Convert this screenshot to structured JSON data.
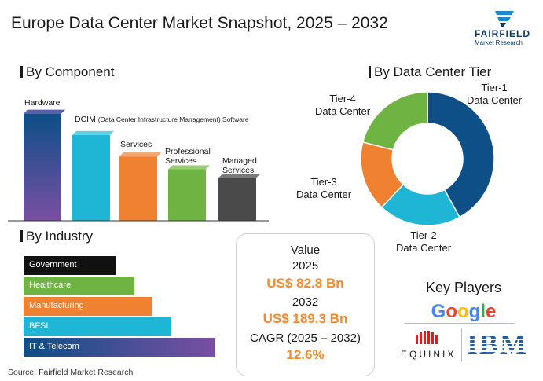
{
  "title": "Europe Data Center Market Snapshot, 2025 – 2032",
  "logo": {
    "brand": "FAIRFIELD",
    "sub": "Market Research"
  },
  "colors": {
    "navy": "#0d4f86",
    "cyan": "#1fb6d6",
    "orange": "#f08131",
    "green": "#6fb443",
    "gray": "#4a4a4a",
    "black": "#111111",
    "accent": "#f28a2e"
  },
  "chart_data": [
    {
      "type": "bar",
      "title": "By Component",
      "categories": [
        "Hardware",
        "DCIM (Data Center Infrastructure Management) Software",
        "Services",
        "Professional Services",
        "Managed Services"
      ],
      "category_lines": [
        [
          "Hardware"
        ],
        [
          "DCIM",
          "(Data Center Infrastructure Management) Software"
        ],
        [
          "Services"
        ],
        [
          "Professional",
          "Services"
        ],
        [
          "Managed",
          "Services"
        ]
      ],
      "values": [
        5,
        4,
        3,
        2.4,
        2
      ],
      "ylim": [
        0,
        5.5
      ],
      "xlabel": "",
      "ylabel": ""
    },
    {
      "type": "pie",
      "title": "By Data Center Tier",
      "labels": [
        "Tier-1 Data Center",
        "Tier-2 Data Center",
        "Tier-3 Data Center",
        "Tier-4 Data Center"
      ],
      "label_lines": [
        [
          "Tier-1",
          "Data Center"
        ],
        [
          "Tier-2",
          "Data Center"
        ],
        [
          "Tier-3",
          "Data Center"
        ],
        [
          "Tier-4",
          "Data Center"
        ]
      ],
      "values": [
        42,
        20,
        17,
        21
      ],
      "donut": true
    },
    {
      "type": "bar",
      "orientation": "horizontal",
      "title": "By Industry",
      "categories": [
        "Government",
        "Healthcare",
        "Manufacturing",
        "BFSI",
        "IT & Telecom"
      ],
      "values": [
        2.5,
        3,
        3.5,
        4,
        5.2
      ],
      "xlim": [
        0,
        5.5
      ]
    }
  ],
  "value_box": {
    "heading": "Value",
    "year1": "2025",
    "value1": "US$ 82.8 Bn",
    "year2": "2032",
    "value2": "US$ 189.3 Bn",
    "cagr_label": "CAGR (2025 – 2032)",
    "cagr_value": "12.6%"
  },
  "key_players": {
    "title": "Key Players",
    "items": [
      "Google",
      "EQUINIX",
      "IBM"
    ]
  },
  "source": "Source: Fairfield Market Research"
}
